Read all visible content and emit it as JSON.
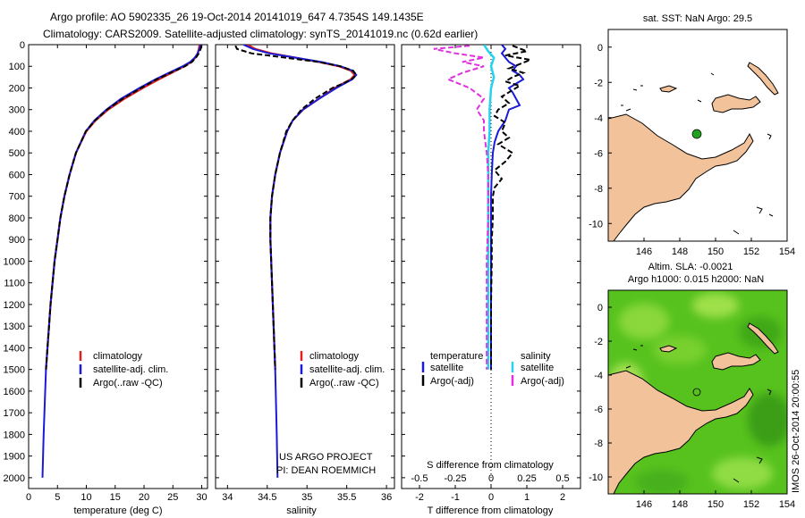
{
  "header": {
    "line1": "Argo profile: AO 5902335_26 19-Oct-2014 20141019_647 4.7354S 149.1435E",
    "line2": "Climatology: CARS2009. Satellite-adjusted climatology: synTS_20141019.nc (0.62d earlier)"
  },
  "colors": {
    "climatology": "#e0201c",
    "satellite": "#1a1ad8",
    "argo": "#000000",
    "sal_satellite": "#22d4f0",
    "sal_argo": "#e030e0",
    "land": "#f2c29a",
    "sea_sla": "#57c21e"
  },
  "chart_data": [
    {
      "type": "line",
      "id": "temperature",
      "xlabel": "temperature (deg C)",
      "ylabel": "",
      "xlim": [
        0,
        31
      ],
      "ylim": [
        2050,
        0
      ],
      "xticks": [
        0,
        5,
        10,
        15,
        20,
        25,
        30
      ],
      "yticks": [
        0,
        100,
        200,
        300,
        400,
        500,
        600,
        700,
        800,
        900,
        1000,
        1100,
        1200,
        1300,
        1400,
        1500,
        1600,
        1700,
        1800,
        1900,
        2000
      ],
      "legend": [
        "climatology",
        "satellite-adj. clim.",
        "Argo(..raw -QC)"
      ],
      "series": [
        {
          "name": "climatology",
          "depth": [
            0,
            20,
            40,
            60,
            80,
            100,
            130,
            160,
            200,
            250,
            300,
            350,
            400,
            500,
            600,
            700,
            800,
            900,
            1000,
            1200,
            1500
          ],
          "values": [
            29.6,
            29.5,
            29.3,
            28.9,
            28.2,
            27.0,
            24.8,
            22.6,
            19.8,
            16.6,
            13.8,
            11.6,
            10.0,
            8.2,
            7.1,
            6.2,
            5.5,
            5.0,
            4.5,
            3.8,
            3.0
          ]
        },
        {
          "name": "satellite-adj. clim.",
          "depth": [
            0,
            20,
            40,
            60,
            80,
            100,
            130,
            160,
            200,
            250,
            300,
            350,
            400,
            500,
            600,
            700,
            800,
            900,
            1000,
            1200,
            1500,
            1800,
            2000
          ],
          "values": [
            29.8,
            29.6,
            29.3,
            28.8,
            28.0,
            26.7,
            24.3,
            22.0,
            19.2,
            16.0,
            13.5,
            11.4,
            9.9,
            8.2,
            7.1,
            6.2,
            5.5,
            5.0,
            4.5,
            3.8,
            3.0,
            2.6,
            2.4
          ]
        },
        {
          "name": "Argo(..raw -QC)",
          "depth": [
            5,
            20,
            40,
            60,
            80,
            100,
            130,
            160,
            200,
            250,
            300,
            350,
            400,
            500,
            600,
            700,
            800,
            900,
            1000,
            1200,
            1500
          ],
          "values": [
            30.0,
            29.8,
            29.5,
            29.0,
            28.3,
            27.1,
            24.6,
            22.2,
            19.5,
            16.3,
            13.6,
            11.5,
            9.9,
            8.2,
            7.1,
            6.2,
            5.5,
            5.0,
            4.5,
            3.8,
            3.0
          ]
        }
      ]
    },
    {
      "type": "line",
      "id": "salinity",
      "xlabel": "salinity",
      "xlim": [
        33.85,
        36.1
      ],
      "ylim": [
        2050,
        0
      ],
      "xticks": [
        34,
        34.5,
        35,
        35.5,
        36
      ],
      "legend": [
        "climatology",
        "satellite-adj. clim.",
        "Argo(..raw -QC)"
      ],
      "series": [
        {
          "name": "climatology",
          "depth": [
            0,
            20,
            40,
            60,
            80,
            100,
            120,
            140,
            160,
            180,
            200,
            250,
            300,
            350,
            400,
            500,
            600,
            700,
            800,
            900,
            1000,
            1200,
            1500
          ],
          "values": [
            34.25,
            34.35,
            34.55,
            34.85,
            35.15,
            35.4,
            35.55,
            35.6,
            35.55,
            35.45,
            35.35,
            35.15,
            34.95,
            34.82,
            34.75,
            34.66,
            34.6,
            34.56,
            34.54,
            34.54,
            34.55,
            34.57,
            34.6
          ]
        },
        {
          "name": "satellite-adj. clim.",
          "depth": [
            0,
            20,
            40,
            60,
            80,
            100,
            120,
            140,
            160,
            180,
            200,
            250,
            300,
            350,
            400,
            500,
            600,
            700,
            800,
            900,
            1000,
            1200,
            1500,
            1800,
            2000
          ],
          "values": [
            34.2,
            34.32,
            34.52,
            34.85,
            35.18,
            35.42,
            35.57,
            35.62,
            35.57,
            35.47,
            35.37,
            35.15,
            34.95,
            34.82,
            34.75,
            34.66,
            34.6,
            34.56,
            34.54,
            34.54,
            34.55,
            34.57,
            34.6,
            34.62,
            34.63
          ]
        },
        {
          "name": "Argo(..raw -QC)",
          "depth": [
            5,
            20,
            40,
            60,
            80,
            100,
            120,
            140,
            160,
            180,
            200,
            250,
            300,
            350,
            400,
            500,
            600,
            700,
            800,
            900,
            1000,
            1200,
            1500
          ],
          "values": [
            34.1,
            34.12,
            34.3,
            34.72,
            35.15,
            35.42,
            35.58,
            35.62,
            35.56,
            35.45,
            35.32,
            35.1,
            34.93,
            34.82,
            34.74,
            34.66,
            34.6,
            34.56,
            34.54,
            34.54,
            34.55,
            34.57,
            34.6
          ]
        }
      ]
    },
    {
      "type": "line",
      "id": "differences",
      "xlabel": "T difference from climatology",
      "xlabel_top": "S difference from climatology",
      "xlim": [
        -2.5,
        2.5
      ],
      "ylim": [
        2050,
        0
      ],
      "xticks": [
        -2,
        -1,
        0,
        1,
        2
      ],
      "xticks_s": [
        -0.5,
        -0.25,
        0,
        0.25,
        0.5
      ],
      "legend_t_title": "temperature",
      "legend_s_title": "salinity",
      "legend": [
        "satellite",
        "Argo(-adj)",
        "satellite",
        "Argo(-adj)"
      ],
      "series": [
        {
          "name": "temperature satellite",
          "depth": [
            0,
            20,
            40,
            60,
            80,
            100,
            120,
            140,
            160,
            180,
            200,
            220,
            250,
            280,
            300,
            350,
            400,
            450,
            500,
            600,
            700,
            800,
            900,
            1000,
            1200,
            1400,
            1500
          ],
          "values": [
            0.3,
            0.4,
            0.3,
            0.4,
            0.5,
            0.7,
            0.6,
            0.8,
            0.9,
            0.7,
            0.5,
            0.6,
            0.7,
            0.8,
            0.5,
            0.4,
            0.2,
            0.1,
            0.05,
            0.02,
            0.0,
            0.0,
            0.0,
            0.0,
            0.0,
            0.0,
            0.0
          ]
        },
        {
          "name": "temperature Argo(-adj)",
          "depth": [
            5,
            30,
            50,
            70,
            90,
            110,
            130,
            150,
            170,
            190,
            210,
            240,
            270,
            300,
            330,
            360,
            400,
            430,
            460,
            500,
            540,
            580,
            620,
            660,
            700,
            800,
            900,
            1000,
            1200,
            1400,
            1500
          ],
          "values": [
            0.6,
            1.0,
            0.4,
            1.1,
            0.8,
            0.5,
            0.9,
            0.6,
            0.4,
            0.8,
            0.6,
            0.3,
            0.5,
            0.2,
            0.1,
            0.4,
            0.3,
            0.5,
            0.2,
            0.6,
            0.4,
            0.1,
            0.3,
            0.1,
            0.05,
            0.05,
            0.02,
            0.02,
            0.0,
            0.0,
            0.0
          ]
        },
        {
          "name": "salinity satellite",
          "depth": [
            0,
            30,
            60,
            100,
            150,
            200,
            300,
            400,
            500,
            600,
            800,
            1000,
            1200,
            1400,
            1500
          ],
          "values": [
            -0.05,
            -0.02,
            0.02,
            0.0,
            0.02,
            0.0,
            -0.01,
            -0.01,
            -0.02,
            -0.02,
            -0.02,
            -0.02,
            -0.02,
            -0.02,
            -0.02
          ]
        },
        {
          "name": "salinity Argo(-adj)",
          "depth": [
            5,
            20,
            40,
            60,
            80,
            100,
            130,
            160,
            200,
            250,
            300,
            350,
            400,
            500,
            600,
            800,
            1000,
            1200,
            1400,
            1500
          ],
          "values": [
            -0.15,
            -0.4,
            -0.25,
            -0.05,
            -0.2,
            -0.05,
            -0.2,
            -0.3,
            -0.15,
            -0.05,
            -0.1,
            -0.05,
            -0.05,
            -0.03,
            -0.02,
            -0.02,
            -0.03,
            -0.03,
            -0.03,
            -0.03
          ]
        }
      ]
    },
    {
      "type": "map",
      "id": "sst_map",
      "title": "sat. SST: NaN Argo: 29.5",
      "xlim": [
        144,
        154
      ],
      "ylim": [
        -11,
        1
      ],
      "xticks": [
        146,
        148,
        150,
        152,
        154
      ],
      "yticks": [
        0,
        -2,
        -4,
        -6,
        -8,
        -10
      ],
      "marker": {
        "lon": 149.14,
        "lat": -4.74
      }
    },
    {
      "type": "map",
      "id": "sla_map",
      "title_line1": "Altim. SLA: -0.0021",
      "title_line2": "Argo h1000: 0.015 h2000: NaN",
      "xlim": [
        144,
        154
      ],
      "ylim": [
        -11,
        1
      ],
      "xticks": [
        146,
        148,
        150,
        152,
        154
      ],
      "yticks": [
        0,
        -2,
        -4,
        -6,
        -8,
        -10
      ]
    }
  ],
  "annotations": {
    "project_line1": "US ARGO PROJECT",
    "project_line2": "PI: DEAN ROEMMICH",
    "timestamp": "IMOS 26-Oct-2014 20:00:55"
  }
}
